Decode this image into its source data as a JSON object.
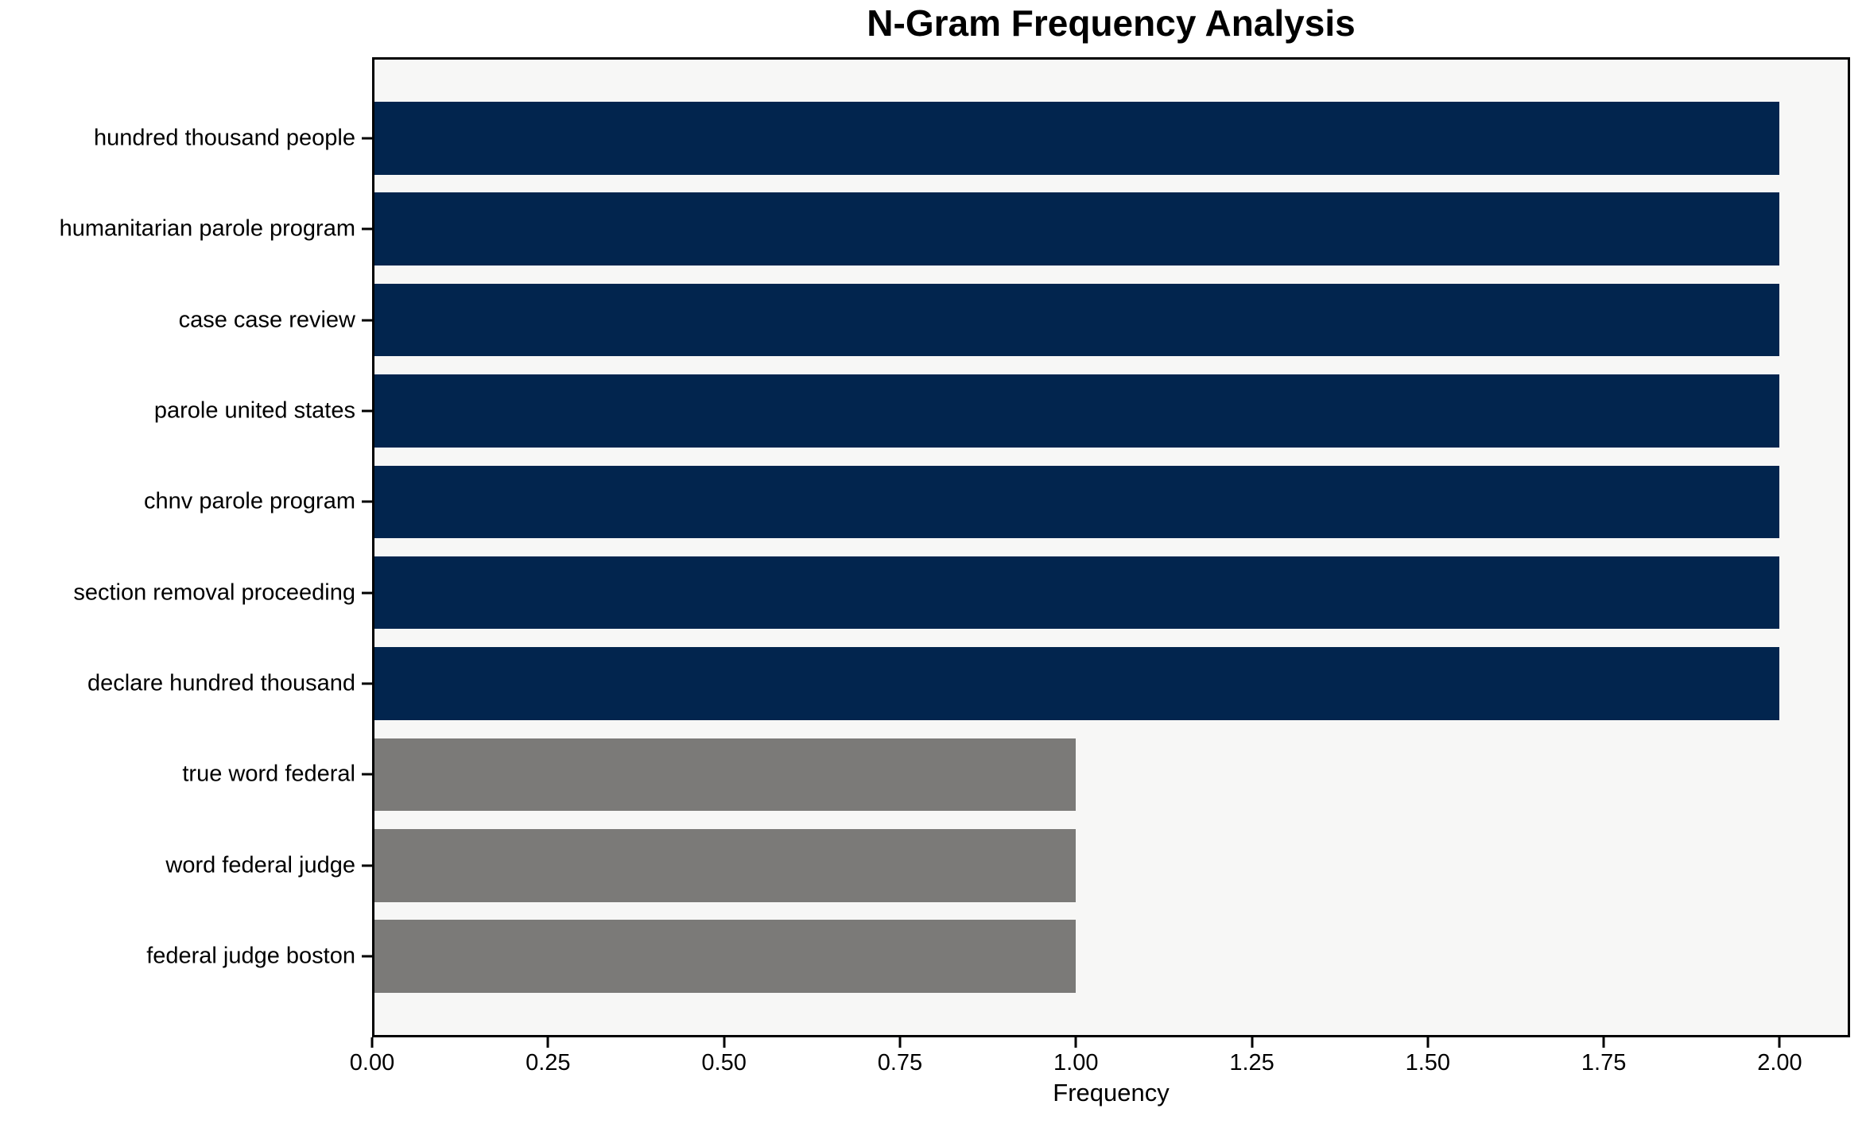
{
  "chart_data": {
    "type": "bar",
    "orientation": "horizontal",
    "title": "N-Gram Frequency Analysis",
    "xlabel": "Frequency",
    "ylabel": "",
    "categories": [
      "hundred thousand people",
      "humanitarian parole program",
      "case case review",
      "parole united states",
      "chnv parole program",
      "section removal proceeding",
      "declare hundred thousand",
      "true word federal",
      "word federal judge",
      "federal judge boston"
    ],
    "values": [
      2,
      2,
      2,
      2,
      2,
      2,
      2,
      1,
      1,
      1
    ],
    "bar_colors": [
      "#02254e",
      "#02254e",
      "#02254e",
      "#02254e",
      "#02254e",
      "#02254e",
      "#02254e",
      "#7b7a78",
      "#7b7a78",
      "#7b7a78"
    ],
    "xlim": [
      0,
      2.1
    ],
    "xticks": [
      {
        "value": 0.0,
        "label": "0.00"
      },
      {
        "value": 0.25,
        "label": "0.25"
      },
      {
        "value": 0.5,
        "label": "0.50"
      },
      {
        "value": 0.75,
        "label": "0.75"
      },
      {
        "value": 1.0,
        "label": "1.00"
      },
      {
        "value": 1.25,
        "label": "1.25"
      },
      {
        "value": 1.5,
        "label": "1.50"
      },
      {
        "value": 1.75,
        "label": "1.75"
      },
      {
        "value": 2.0,
        "label": "2.00"
      }
    ],
    "grid": false,
    "legend_position": "none",
    "colors": {
      "frequent_bar": "#02254e",
      "infrequent_bar": "#7b7a78",
      "plot_background": "#f7f7f6",
      "figure_background": "#ffffff",
      "axis": "#000000",
      "text": "#000000"
    }
  }
}
